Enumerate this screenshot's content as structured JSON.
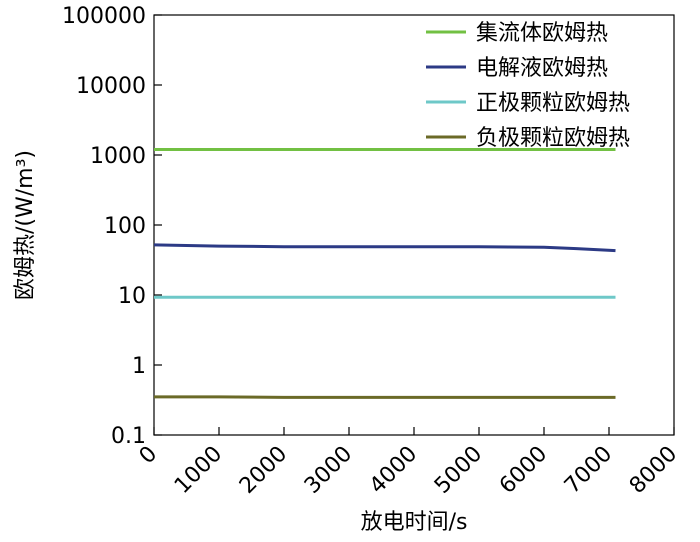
{
  "chart_data": {
    "type": "line",
    "xlabel": "放电时间/s",
    "ylabel": "欧姆热/(W/m³)",
    "yscale": "log",
    "xlim": [
      0,
      8000
    ],
    "ylim": [
      0.1,
      100000
    ],
    "x_ticks": [
      0,
      1000,
      2000,
      3000,
      4000,
      5000,
      6000,
      7000,
      8000
    ],
    "x_tick_labels": [
      "0",
      "1000",
      "2000",
      "3000",
      "4000",
      "5000",
      "6000",
      "7000",
      "8000"
    ],
    "y_ticks": [
      0.1,
      1,
      10,
      100,
      1000,
      10000,
      100000
    ],
    "y_tick_labels": [
      "0.1",
      "1",
      "10",
      "100",
      "1000",
      "10000",
      "100000"
    ],
    "grid": false,
    "legend_position": "top-right",
    "series": [
      {
        "name": "集流体欧姆热",
        "color": "#72c043",
        "points": [
          {
            "x": 0,
            "y": 1200
          },
          {
            "x": 1000,
            "y": 1200
          },
          {
            "x": 2000,
            "y": 1200
          },
          {
            "x": 3000,
            "y": 1200
          },
          {
            "x": 4000,
            "y": 1200
          },
          {
            "x": 5000,
            "y": 1200
          },
          {
            "x": 6000,
            "y": 1200
          },
          {
            "x": 7100,
            "y": 1200
          }
        ]
      },
      {
        "name": "电解液欧姆热",
        "color": "#2c3a85",
        "points": [
          {
            "x": 0,
            "y": 52
          },
          {
            "x": 500,
            "y": 51
          },
          {
            "x": 1000,
            "y": 50
          },
          {
            "x": 2000,
            "y": 49
          },
          {
            "x": 3000,
            "y": 49
          },
          {
            "x": 4000,
            "y": 49
          },
          {
            "x": 5000,
            "y": 49
          },
          {
            "x": 6000,
            "y": 48
          },
          {
            "x": 6500,
            "y": 46
          },
          {
            "x": 7100,
            "y": 43
          }
        ]
      },
      {
        "name": "正极颗粒欧姆热",
        "color": "#6ec8c8",
        "points": [
          {
            "x": 0,
            "y": 9.3
          },
          {
            "x": 1000,
            "y": 9.3
          },
          {
            "x": 2000,
            "y": 9.3
          },
          {
            "x": 3000,
            "y": 9.3
          },
          {
            "x": 4000,
            "y": 9.3
          },
          {
            "x": 5000,
            "y": 9.3
          },
          {
            "x": 6000,
            "y": 9.3
          },
          {
            "x": 7100,
            "y": 9.3
          }
        ]
      },
      {
        "name": "负极颗粒欧姆热",
        "color": "#6b6a27",
        "points": [
          {
            "x": 0,
            "y": 0.35
          },
          {
            "x": 1000,
            "y": 0.35
          },
          {
            "x": 2000,
            "y": 0.345
          },
          {
            "x": 3000,
            "y": 0.345
          },
          {
            "x": 4000,
            "y": 0.345
          },
          {
            "x": 5000,
            "y": 0.345
          },
          {
            "x": 6000,
            "y": 0.345
          },
          {
            "x": 7100,
            "y": 0.345
          }
        ]
      }
    ]
  }
}
